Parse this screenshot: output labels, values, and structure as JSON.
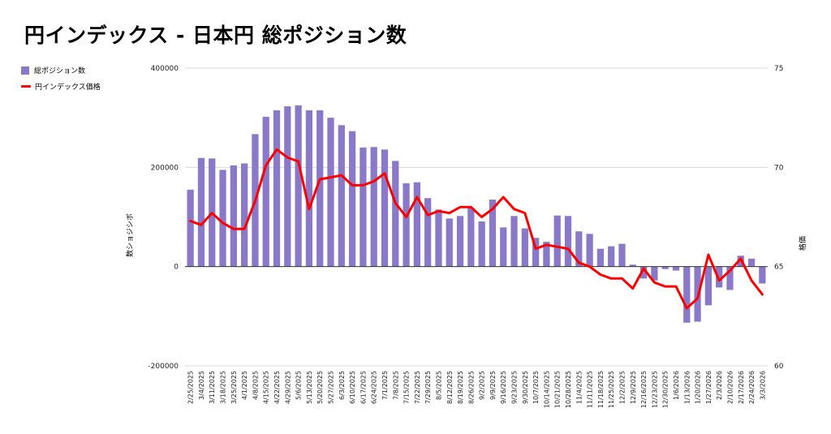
{
  "title": "円インデックス - 日本円 総ポジション数",
  "legend": {
    "bar_label": "総ポジション数",
    "line_label": "円インデックス価格"
  },
  "colors": {
    "bar": "#8a78c8",
    "line": "#ff0000",
    "grid": "#d9d9d9",
    "zero": "#333333"
  },
  "chart_data": {
    "type": "bar+line",
    "categories": [
      "2/25/2025",
      "3/4/2025",
      "3/11/2025",
      "3/18/2025",
      "3/25/2025",
      "4/1/2025",
      "4/8/2025",
      "4/15/2025",
      "4/22/2025",
      "4/29/2025",
      "5/6/2025",
      "5/13/2025",
      "5/20/2025",
      "5/27/2025",
      "6/3/2025",
      "6/10/2025",
      "6/17/2025",
      "6/24/2025",
      "7/1/2025",
      "7/8/2025",
      "7/15/2025",
      "7/22/2025",
      "7/29/2025",
      "8/5/2025",
      "8/12/2025",
      "8/19/2025",
      "8/26/2025",
      "9/2/2025",
      "9/9/2025",
      "9/16/2025",
      "9/23/2025",
      "9/30/2025",
      "10/7/2025",
      "10/14/2025",
      "10/21/2025",
      "10/28/2025",
      "11/4/2025",
      "11/11/2025",
      "11/18/2025",
      "11/25/2025",
      "12/2/2025",
      "12/9/2025",
      "12/16/2025",
      "12/23/2025",
      "12/30/2025",
      "1/6/2026",
      "1/13/2026",
      "1/20/2026",
      "1/27/2026",
      "2/3/2026",
      "2/10/2026",
      "2/17/2026",
      "2/24/2026",
      "3/3/2026"
    ],
    "series": [
      {
        "name": "総ポジション数",
        "type": "bar",
        "axis": "left",
        "values": [
          155000,
          219000,
          218000,
          195000,
          204000,
          208000,
          267000,
          302000,
          315000,
          323000,
          325000,
          315000,
          315000,
          300000,
          285000,
          273000,
          240000,
          241000,
          236000,
          213000,
          168000,
          170000,
          138000,
          115000,
          97000,
          102000,
          118000,
          91000,
          135000,
          79000,
          102000,
          77000,
          58000,
          50000,
          103000,
          102000,
          71000,
          66000,
          36000,
          41000,
          46000,
          4000,
          -24000,
          -28000,
          -5000,
          -8000,
          -113000,
          -111000,
          -78000,
          -42000,
          -47000,
          22000,
          16000,
          -34000
        ]
      },
      {
        "name": "円インデックス価格",
        "type": "line",
        "axis": "right",
        "values": [
          67.3,
          67.1,
          67.7,
          67.2,
          66.9,
          66.9,
          68.3,
          70.1,
          70.9,
          70.5,
          70.3,
          67.9,
          69.4,
          69.5,
          69.6,
          69.1,
          69.1,
          69.3,
          69.7,
          68.2,
          67.5,
          68.5,
          67.6,
          67.8,
          67.7,
          68.0,
          68.0,
          67.5,
          67.9,
          68.5,
          67.9,
          67.7,
          65.9,
          66.1,
          66.0,
          65.9,
          65.2,
          65.0,
          64.6,
          64.4,
          64.4,
          63.9,
          64.9,
          64.2,
          64.0,
          64.0,
          62.9,
          63.4,
          65.6,
          64.3,
          64.8,
          65.4,
          64.3,
          63.6
        ]
      }
    ],
    "left_axis": {
      "label": "数ショジシボ",
      "min": -200000,
      "max": 400000,
      "ticks": [
        -200000,
        0,
        200000,
        400000
      ],
      "tick_labels": [
        "-200000",
        "0",
        "200000",
        "400000"
      ]
    },
    "right_axis": {
      "label": "格価",
      "min": 60,
      "max": 75,
      "ticks": [
        60,
        65,
        70,
        75
      ],
      "tick_labels": [
        "60",
        "65",
        "70",
        "75"
      ]
    },
    "grid": true,
    "legend_position": "top-left"
  }
}
